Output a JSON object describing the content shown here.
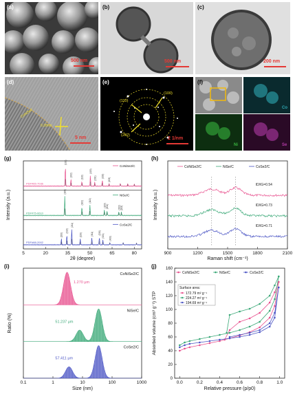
{
  "panels": {
    "a": {
      "label": "(a)",
      "scale": "500 nm"
    },
    "b": {
      "label": "(b)",
      "scale": "500 nm"
    },
    "c": {
      "label": "(c)",
      "scale": "200 nm"
    },
    "d": {
      "label": "(d)",
      "scale": "5 nm",
      "annot1": "CoNiSe2",
      "annot2": "0.28nm"
    },
    "e": {
      "label": "(e)",
      "scale": "2 1/nm",
      "rings": [
        "(110)",
        "(100)",
        "(202)"
      ]
    },
    "f": {
      "label": "(f)",
      "elements": [
        "Co",
        "Ni",
        "Se"
      ]
    }
  },
  "colors": {
    "pink": "#e8508e",
    "green": "#3aa877",
    "blue": "#4a54c4",
    "red": "#e53935"
  },
  "chart_data": [
    {
      "panel": "(g)",
      "type": "line",
      "xlabel": "2θ (degree)",
      "ylabel": "Intensity (a.u.)",
      "xlim": [
        5,
        85
      ],
      "xticks": [
        5,
        20,
        35,
        50,
        65,
        80
      ],
      "series": [
        {
          "name": "CoNiSe2/C",
          "pdf": "PDF#65-7036",
          "color": "#e8508e",
          "peaks": [
            [
              33.4,
              1.0
            ],
            [
              37.2,
              0.35
            ],
            [
              44.6,
              0.25
            ],
            [
              50.3,
              0.55
            ],
            [
              53.3,
              0.2
            ],
            [
              58.4,
              0.3
            ],
            [
              63.0,
              0.12
            ],
            [
              70.6,
              0.15
            ],
            [
              75.6,
              0.12
            ],
            [
              80.0,
              0.1
            ]
          ],
          "peak_labels": [
            "(101)",
            "(102)",
            "(110)",
            "(103)",
            "(201)",
            "(202)",
            "(203)"
          ]
        },
        {
          "name": "NiSe/C",
          "pdf": "PDF#75-0610",
          "color": "#3aa877",
          "peaks": [
            [
              33.0,
              1.0
            ],
            [
              44.6,
              0.45
            ],
            [
              50.0,
              0.55
            ],
            [
              59.8,
              0.3
            ],
            [
              61.6,
              0.25
            ],
            [
              69.6,
              0.2
            ],
            [
              71.3,
              0.18
            ]
          ],
          "peak_labels": [
            "(101)",
            "(102)",
            "(110)",
            "(103)",
            "(201)",
            "(202)",
            "(203)"
          ]
        },
        {
          "name": "CoSe2/C",
          "pdf": "PDF#88-2002",
          "color": "#4a54c4",
          "peaks": [
            [
              30.7,
              0.3
            ],
            [
              34.4,
              0.5
            ],
            [
              37.7,
              0.8
            ],
            [
              43.5,
              0.3
            ],
            [
              51.3,
              0.35
            ],
            [
              56.4,
              0.4
            ],
            [
              58.8,
              0.25
            ],
            [
              63.5,
              0.12
            ],
            [
              72.5,
              0.12
            ],
            [
              81.5,
              0.1
            ]
          ],
          "peak_labels": [
            "(200)",
            "(210)",
            "(211)",
            "(220)",
            "(311)",
            "(230)",
            "(321)",
            "(400)"
          ]
        }
      ]
    },
    {
      "panel": "(h)",
      "type": "line",
      "xlabel": "Raman shift (cm⁻¹)",
      "ylabel": "Intensity (a.u.)",
      "xlim": [
        900,
        2100
      ],
      "xticks": [
        900,
        1200,
        1500,
        1800,
        2100
      ],
      "series": [
        {
          "name": "CoNiSe2/C",
          "color": "#e8508e",
          "ratio": "ID/IG=0.54"
        },
        {
          "name": "NiSe/C",
          "color": "#3aa877",
          "ratio": "ID/IG=0.73"
        },
        {
          "name": "CoSe2/C",
          "color": "#4a54c4",
          "ratio": "ID/IG=0.71"
        }
      ]
    },
    {
      "panel": "(i)",
      "type": "area",
      "xlabel": "Size (nm)",
      "ylabel": "Ratio (%)",
      "xscale": "log",
      "xlim": [
        0.1,
        1000
      ],
      "xticks": [
        "0.1",
        "1",
        "10",
        "100",
        "1000"
      ],
      "series": [
        {
          "name": "CoNiSe2/C",
          "color": "#e8508e",
          "annotation": "1.270 μm",
          "peaks": [
            [
              3.0,
              1.0
            ]
          ]
        },
        {
          "name": "NiSe/C",
          "color": "#3aa877",
          "annotation": "51.237 μm",
          "peaks": [
            [
              8,
              0.35
            ],
            [
              35,
              1.0
            ]
          ]
        },
        {
          "name": "CoSe2/C",
          "color": "#4a54c4",
          "annotation": "57.411 μm",
          "peaks": [
            [
              3.5,
              0.35
            ],
            [
              35,
              1.0
            ]
          ]
        }
      ]
    },
    {
      "panel": "(j)",
      "type": "line",
      "xlabel": "Relative pressure (p/p0)",
      "ylabel": "Absorbed volume (cm³ g⁻¹) STP",
      "xlim": [
        -0.05,
        1.05
      ],
      "ylim": [
        0,
        160
      ],
      "xticks": [
        "0.0",
        "0.2",
        "0.4",
        "0.6",
        "0.8",
        "1.0"
      ],
      "yticks": [
        0,
        20,
        40,
        60,
        80,
        100,
        120,
        140,
        160
      ],
      "legend_title": "Surface area:",
      "series": [
        {
          "name": "CoNiSe2/C",
          "color": "#e8508e",
          "surface_area": "172.79 m² g⁻¹",
          "adsorption": [
            [
              0.0,
              40
            ],
            [
              0.05,
              43
            ],
            [
              0.1,
              45
            ],
            [
              0.2,
              48
            ],
            [
              0.3,
              51
            ],
            [
              0.4,
              54
            ],
            [
              0.5,
              58
            ],
            [
              0.6,
              62
            ],
            [
              0.7,
              67
            ],
            [
              0.8,
              74
            ],
            [
              0.9,
              88
            ],
            [
              0.95,
              105
            ],
            [
              0.99,
              140
            ]
          ],
          "desorption": [
            [
              0.99,
              140
            ],
            [
              0.95,
              125
            ],
            [
              0.9,
              110
            ],
            [
              0.8,
              95
            ],
            [
              0.7,
              87
            ],
            [
              0.6,
              82
            ],
            [
              0.5,
              70
            ],
            [
              0.45,
              56
            ]
          ]
        },
        {
          "name": "NiSe/C",
          "color": "#3aa877",
          "surface_area": "224.27 m² g⁻¹",
          "adsorption": [
            [
              0.0,
              48
            ],
            [
              0.05,
              52
            ],
            [
              0.1,
              54
            ],
            [
              0.2,
              57
            ],
            [
              0.3,
              60
            ],
            [
              0.4,
              63
            ],
            [
              0.5,
              66
            ],
            [
              0.6,
              70
            ],
            [
              0.7,
              75
            ],
            [
              0.8,
              82
            ],
            [
              0.9,
              98
            ],
            [
              0.95,
              115
            ],
            [
              0.99,
              148
            ]
          ],
          "desorption": [
            [
              0.99,
              148
            ],
            [
              0.95,
              135
            ],
            [
              0.9,
              120
            ],
            [
              0.8,
              108
            ],
            [
              0.7,
              101
            ],
            [
              0.6,
              97
            ],
            [
              0.5,
              92
            ],
            [
              0.47,
              66
            ]
          ]
        },
        {
          "name": "CoSe2/C",
          "color": "#4a54c4",
          "surface_area": "194.69 m² g⁻¹",
          "adsorption": [
            [
              0.0,
              45
            ],
            [
              0.05,
              48
            ],
            [
              0.1,
              50
            ],
            [
              0.2,
              52
            ],
            [
              0.3,
              54
            ],
            [
              0.4,
              56
            ],
            [
              0.5,
              58
            ],
            [
              0.6,
              60
            ],
            [
              0.7,
              63
            ],
            [
              0.8,
              67
            ],
            [
              0.9,
              75
            ],
            [
              0.95,
              88
            ],
            [
              0.99,
              132
            ]
          ],
          "desorption": [
            [
              0.99,
              132
            ],
            [
              0.95,
              95
            ],
            [
              0.9,
              80
            ],
            [
              0.8,
              70
            ],
            [
              0.7,
              66
            ],
            [
              0.6,
              63
            ],
            [
              0.5,
              60
            ]
          ]
        }
      ]
    }
  ]
}
